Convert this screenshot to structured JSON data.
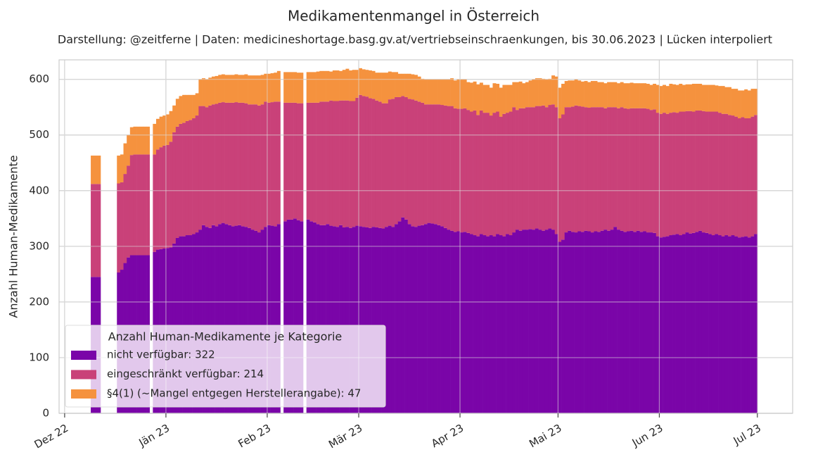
{
  "chart_data": {
    "type": "stacked-bar",
    "title": "Medikamentenmangel in Österreich",
    "subtitle": "Darstellung: @zeitferne | Daten: medicineshortage.basg.gv.at/vertriebseinschraenkungen, bis 30.06.2023 | Lücken interpoliert",
    "ylabel": "Anzahl Human-Medikamente",
    "legend_title": "Anzahl Human-Medikamente je Kategorie",
    "legend": "lower left",
    "grid": true,
    "xlim": [
      -1.7,
      222.8
    ],
    "ylim": [
      0,
      635
    ],
    "xticks": [
      {
        "value": 0,
        "label": "Dez 22"
      },
      {
        "value": 31,
        "label": "Jän 23"
      },
      {
        "value": 62,
        "label": "Feb 23"
      },
      {
        "value": 90,
        "label": "Mär 23"
      },
      {
        "value": 121,
        "label": "Apr 23"
      },
      {
        "value": 151,
        "label": "Mai 23"
      },
      {
        "value": 182,
        "label": "Jun 23"
      },
      {
        "value": 212,
        "label": "Jul 23"
      }
    ],
    "yticks": [
      0,
      100,
      200,
      300,
      400,
      500,
      600
    ],
    "x": [
      8,
      9,
      10,
      11,
      12,
      13,
      14,
      15,
      16,
      17,
      18,
      19,
      20,
      21,
      22,
      23,
      24,
      25,
      26,
      27,
      28,
      29,
      30,
      31,
      32,
      33,
      34,
      35,
      36,
      37,
      38,
      39,
      40,
      41,
      42,
      43,
      44,
      45,
      46,
      47,
      48,
      49,
      50,
      51,
      52,
      53,
      54,
      55,
      56,
      57,
      58,
      59,
      60,
      61,
      62,
      63,
      64,
      65,
      66,
      67,
      68,
      69,
      70,
      71,
      72,
      73,
      74,
      75,
      76,
      77,
      78,
      79,
      80,
      81,
      82,
      83,
      84,
      85,
      86,
      87,
      88,
      89,
      90,
      91,
      92,
      93,
      94,
      95,
      96,
      97,
      98,
      99,
      100,
      101,
      102,
      103,
      104,
      105,
      106,
      107,
      108,
      109,
      110,
      111,
      112,
      113,
      114,
      115,
      116,
      117,
      118,
      119,
      120,
      121,
      122,
      123,
      124,
      125,
      126,
      127,
      128,
      129,
      130,
      131,
      132,
      133,
      134,
      135,
      136,
      137,
      138,
      139,
      140,
      141,
      142,
      143,
      144,
      145,
      146,
      147,
      148,
      149,
      150,
      151,
      152,
      153,
      154,
      155,
      156,
      157,
      158,
      159,
      160,
      161,
      162,
      163,
      164,
      165,
      166,
      167,
      168,
      169,
      170,
      171,
      172,
      173,
      174,
      175,
      176,
      177,
      178,
      179,
      180,
      181,
      182,
      183,
      184,
      185,
      186,
      187,
      188,
      189,
      190,
      191,
      192,
      193,
      194,
      195,
      196,
      197,
      198,
      199,
      200,
      201,
      202,
      203,
      204,
      205,
      206,
      207,
      208,
      209,
      210,
      211
    ],
    "series": [
      {
        "name": "nicht verfügbar: 322",
        "color": "#7a05a8",
        "values": [
          245,
          245,
          245,
          null,
          null,
          null,
          null,
          null,
          253,
          258,
          270,
          280,
          284,
          284,
          284,
          284,
          284,
          284,
          null,
          290,
          294,
          295,
          296,
          297,
          298,
          305,
          315,
          318,
          318,
          320,
          320,
          322,
          325,
          330,
          338,
          335,
          333,
          338,
          336,
          340,
          342,
          340,
          338,
          336,
          337,
          338,
          336,
          335,
          333,
          330,
          328,
          325,
          330,
          335,
          338,
          337,
          336,
          340,
          null,
          345,
          348,
          348,
          350,
          347,
          345,
          null,
          348,
          345,
          343,
          340,
          338,
          338,
          340,
          337,
          336,
          335,
          338,
          334,
          335,
          333,
          335,
          337,
          336,
          335,
          334,
          333,
          335,
          334,
          333,
          332,
          335,
          337,
          335,
          340,
          345,
          352,
          348,
          340,
          336,
          335,
          337,
          338,
          340,
          342,
          341,
          340,
          338,
          336,
          333,
          330,
          328,
          326,
          327,
          325,
          326,
          324,
          322,
          320,
          318,
          322,
          320,
          318,
          320,
          318,
          322,
          320,
          318,
          322,
          320,
          325,
          330,
          328,
          330,
          330,
          331,
          330,
          332,
          330,
          328,
          330,
          332,
          330,
          322,
          308,
          312,
          325,
          328,
          326,
          325,
          327,
          326,
          328,
          327,
          325,
          327,
          326,
          328,
          330,
          328,
          330,
          335,
          330,
          328,
          326,
          327,
          328,
          326,
          328,
          326,
          327,
          325,
          325,
          324,
          318,
          316,
          317,
          318,
          320,
          321,
          322,
          320,
          322,
          325,
          323,
          324,
          326,
          328,
          325,
          324,
          322,
          320,
          322,
          320,
          318,
          320,
          318,
          320,
          318,
          316,
          317,
          318,
          316,
          318,
          322
        ]
      },
      {
        "name": "eingeschränkt verfügbar: 214",
        "color": "#c94179",
        "values": [
          167,
          167,
          167,
          null,
          null,
          null,
          null,
          null,
          160,
          157,
          160,
          165,
          180,
          181,
          181,
          181,
          181,
          181,
          null,
          175,
          180,
          183,
          185,
          185,
          190,
          200,
          200,
          202,
          204,
          205,
          207,
          208,
          210,
          222,
          214,
          215,
          220,
          217,
          220,
          218,
          217,
          218,
          220,
          222,
          222,
          220,
          222,
          222,
          222,
          225,
          227,
          228,
          225,
          225,
          220,
          222,
          224,
          220,
          null,
          213,
          210,
          210,
          208,
          210,
          212,
          null,
          210,
          213,
          215,
          218,
          222,
          222,
          220,
          225,
          225,
          226,
          224,
          228,
          227,
          228,
          226,
          230,
          236,
          235,
          235,
          233,
          230,
          228,
          227,
          225,
          222,
          227,
          230,
          228,
          223,
          218,
          220,
          225,
          228,
          227,
          223,
          220,
          215,
          213,
          214,
          215,
          217,
          218,
          220,
          222,
          224,
          222,
          220,
          222,
          222,
          221,
          220,
          224,
          218,
          222,
          220,
          222,
          215,
          222,
          220,
          213,
          220,
          218,
          222,
          225,
          215,
          220,
          218,
          220,
          219,
          220,
          220,
          222,
          225,
          220,
          222,
          225,
          228,
          222,
          225,
          225,
          222,
          225,
          228,
          225,
          225,
          222,
          222,
          225,
          223,
          224,
          222,
          218,
          222,
          220,
          215,
          218,
          222,
          222,
          220,
          220,
          222,
          220,
          222,
          221,
          222,
          220,
          222,
          222,
          222,
          223,
          220,
          220,
          220,
          218,
          222,
          220,
          218,
          220,
          218,
          218,
          216,
          218,
          218,
          220,
          222,
          220,
          220,
          220,
          218,
          218,
          215,
          215,
          214,
          215,
          212,
          214,
          215,
          214
        ]
      },
      {
        "name": "§4(1) (~Mangel entgegen Herstellerangabe): 47",
        "color": "#f5923e",
        "values": [
          51,
          51,
          51,
          null,
          null,
          null,
          null,
          null,
          50,
          50,
          55,
          55,
          50,
          50,
          50,
          50,
          50,
          50,
          null,
          55,
          55,
          55,
          54,
          55,
          55,
          48,
          50,
          50,
          50,
          47,
          45,
          42,
          40,
          48,
          50,
          50,
          50,
          50,
          50,
          50,
          50,
          50,
          50,
          50,
          50,
          50,
          50,
          52,
          52,
          52,
          52,
          54,
          53,
          50,
          52,
          52,
          52,
          55,
          null,
          55,
          55,
          55,
          55,
          55,
          55,
          null,
          55,
          55,
          55,
          56,
          55,
          55,
          55,
          52,
          55,
          55,
          53,
          55,
          57,
          55,
          56,
          50,
          48,
          48,
          48,
          50,
          50,
          50,
          52,
          55,
          55,
          50,
          48,
          45,
          42,
          40,
          42,
          45,
          45,
          46,
          45,
          43,
          45,
          45,
          45,
          45,
          45,
          46,
          47,
          48,
          50,
          50,
          53,
          53,
          52,
          50,
          52,
          52,
          55,
          50,
          50,
          50,
          50,
          53,
          50,
          52,
          52,
          50,
          48,
          45,
          50,
          48,
          45,
          45,
          48,
          50,
          50,
          50,
          48,
          50,
          47,
          52,
          55,
          55,
          55,
          47,
          48,
          47,
          47,
          46,
          45,
          47,
          46,
          47,
          47,
          45,
          45,
          45,
          45,
          45,
          45,
          45,
          45,
          45,
          46,
          46,
          45,
          45,
          45,
          45,
          45,
          45,
          46,
          50,
          50,
          50,
          50,
          52,
          50,
          50,
          50,
          48,
          48,
          48,
          50,
          48,
          48,
          47,
          48,
          48,
          48,
          47,
          48,
          50,
          48,
          50,
          48,
          50,
          50,
          48,
          52,
          50,
          50,
          47
        ]
      }
    ]
  }
}
